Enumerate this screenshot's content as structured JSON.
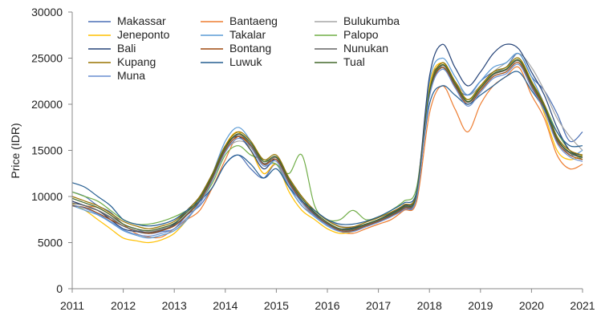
{
  "chart_data": {
    "type": "line",
    "title": "",
    "xlabel": "",
    "ylabel": "Price  (IDR)",
    "xlim": [
      2011,
      2021
    ],
    "ylim": [
      0,
      30000
    ],
    "x_ticks": [
      "2011",
      "2012",
      "2013",
      "2014",
      "2015",
      "2016",
      "2017",
      "2018",
      "2019",
      "2020",
      "2021"
    ],
    "y_ticks": [
      "0",
      "5000",
      "10000",
      "15000",
      "20000",
      "25000",
      "30000"
    ],
    "grid": false,
    "legend_position": "top-left",
    "x": [
      2011.0,
      2011.25,
      2011.5,
      2011.75,
      2012.0,
      2012.25,
      2012.5,
      2012.75,
      2013.0,
      2013.25,
      2013.5,
      2013.75,
      2014.0,
      2014.25,
      2014.5,
      2014.75,
      2015.0,
      2015.25,
      2015.5,
      2015.75,
      2016.0,
      2016.25,
      2016.5,
      2016.75,
      2017.0,
      2017.25,
      2017.5,
      2017.75,
      2018.0,
      2018.25,
      2018.5,
      2018.75,
      2019.0,
      2019.25,
      2019.5,
      2019.75,
      2020.0,
      2020.25,
      2020.5,
      2020.75,
      2021.0
    ],
    "series": [
      {
        "name": "Makassar",
        "color": "#4a6fb5",
        "values": [
          10500,
          10000,
          9000,
          8300,
          7000,
          6500,
          6000,
          6200,
          6500,
          8000,
          9000,
          11000,
          13500,
          14500,
          13000,
          12000,
          13500,
          11000,
          9500,
          8200,
          7000,
          6500,
          6500,
          6800,
          7500,
          8000,
          8500,
          10000,
          22000,
          24000,
          22000,
          21000,
          22500,
          23500,
          24000,
          25500,
          23000,
          21500,
          19000,
          16000,
          17000
        ]
      },
      {
        "name": "Bantaeng",
        "color": "#ed7d31",
        "values": [
          9500,
          9000,
          8800,
          8000,
          7000,
          6000,
          5600,
          5600,
          6500,
          7500,
          8500,
          11000,
          14000,
          16500,
          15000,
          12500,
          13500,
          11000,
          9000,
          8000,
          7000,
          6200,
          6000,
          6500,
          7000,
          7500,
          8500,
          9500,
          19000,
          22000,
          19500,
          17000,
          20000,
          22000,
          23000,
          24000,
          21000,
          18500,
          14500,
          13000,
          13500
        ]
      },
      {
        "name": "Bulukumba",
        "color": "#a5a5a5",
        "values": [
          9000,
          8800,
          8500,
          7800,
          7000,
          6500,
          6200,
          6500,
          7000,
          8000,
          10000,
          12500,
          15000,
          16000,
          15500,
          14000,
          14000,
          12000,
          10000,
          8500,
          7500,
          6800,
          6700,
          7000,
          7500,
          8000,
          9000,
          10500,
          21000,
          24500,
          22500,
          21000,
          22000,
          23500,
          24500,
          25500,
          24000,
          21500,
          18500,
          16500,
          15000
        ]
      },
      {
        "name": "Jeneponto",
        "color": "#ffc000",
        "values": [
          9200,
          8500,
          7500,
          6500,
          5500,
          5200,
          5000,
          5300,
          6000,
          7500,
          9500,
          12000,
          15500,
          17000,
          15000,
          12500,
          13500,
          10500,
          8500,
          7500,
          6500,
          6000,
          6200,
          6800,
          7300,
          8000,
          8800,
          10000,
          22000,
          24500,
          22500,
          20500,
          22000,
          23500,
          24000,
          25000,
          22500,
          19000,
          15000,
          14000,
          14500
        ]
      },
      {
        "name": "Takalar",
        "color": "#5b9bd5",
        "values": [
          9000,
          8500,
          8000,
          7200,
          6300,
          5800,
          5500,
          5800,
          6300,
          7500,
          9500,
          12500,
          16000,
          17500,
          16000,
          13500,
          13500,
          11000,
          9000,
          7800,
          6800,
          6200,
          6300,
          6800,
          7300,
          8000,
          8800,
          10000,
          22500,
          25000,
          23000,
          21000,
          22500,
          24000,
          24500,
          25500,
          23000,
          20000,
          16500,
          14500,
          15000
        ]
      },
      {
        "name": "Palopo",
        "color": "#70ad47",
        "values": [
          10500,
          10000,
          9500,
          8500,
          7500,
          7000,
          7000,
          7300,
          7800,
          8500,
          9500,
          11500,
          14500,
          15500,
          14500,
          14000,
          13500,
          12500,
          14500,
          9000,
          7500,
          7500,
          8500,
          7500,
          7800,
          8500,
          9500,
          11000,
          21500,
          24000,
          22000,
          20500,
          22000,
          23500,
          24000,
          25000,
          22500,
          20000,
          17000,
          15000,
          14000
        ]
      },
      {
        "name": "Bali",
        "color": "#264478",
        "values": [
          9500,
          9000,
          8500,
          7500,
          6500,
          6200,
          6000,
          6300,
          7000,
          8500,
          10000,
          12500,
          15500,
          16500,
          15000,
          13000,
          14000,
          11500,
          9500,
          8200,
          7000,
          6500,
          6600,
          7000,
          7500,
          8200,
          9000,
          10500,
          23000,
          26500,
          24000,
          22000,
          23500,
          25500,
          26500,
          26000,
          23500,
          21000,
          17500,
          15000,
          14500
        ]
      },
      {
        "name": "Bontang",
        "color": "#9e480e",
        "values": [
          9000,
          8800,
          8200,
          7500,
          6800,
          6300,
          6000,
          6300,
          6800,
          8000,
          9500,
          12000,
          15000,
          16500,
          15500,
          13500,
          14000,
          11500,
          9500,
          8000,
          7000,
          6300,
          6300,
          6800,
          7300,
          7900,
          8700,
          10000,
          21000,
          24000,
          22000,
          20000,
          21500,
          23000,
          23500,
          24500,
          22000,
          19500,
          16000,
          14500,
          14000
        ]
      },
      {
        "name": "Nunukan",
        "color": "#636363",
        "values": [
          9300,
          9000,
          8500,
          7700,
          6800,
          6300,
          6100,
          6400,
          6900,
          8100,
          9600,
          12200,
          15200,
          16700,
          15600,
          13600,
          14200,
          11700,
          9600,
          8100,
          7100,
          6400,
          6400,
          6900,
          7400,
          8000,
          8800,
          10100,
          21200,
          24200,
          22200,
          20200,
          21700,
          23200,
          23700,
          24700,
          22200,
          19700,
          16200,
          14700,
          14200
        ]
      },
      {
        "name": "Kupang",
        "color": "#997300",
        "values": [
          10000,
          9500,
          9000,
          8200,
          7300,
          6800,
          6500,
          6800,
          7300,
          8500,
          10000,
          12500,
          15500,
          17000,
          16000,
          14000,
          14500,
          12000,
          10000,
          8500,
          7400,
          6700,
          6700,
          7200,
          7700,
          8300,
          9100,
          10400,
          21500,
          24500,
          22500,
          20500,
          22000,
          23500,
          24000,
          25000,
          22500,
          20000,
          16500,
          15000,
          14500
        ]
      },
      {
        "name": "Luwuk",
        "color": "#255e91",
        "values": [
          11500,
          11000,
          10000,
          9000,
          7500,
          7000,
          6800,
          7000,
          7500,
          8500,
          9500,
          11000,
          13500,
          14500,
          13500,
          12000,
          13000,
          11000,
          9500,
          8500,
          7500,
          7000,
          7000,
          7300,
          7800,
          8500,
          9300,
          10500,
          20000,
          22000,
          21000,
          20000,
          21000,
          22000,
          23000,
          23500,
          21500,
          19500,
          17000,
          15500,
          15500
        ]
      },
      {
        "name": "Tual",
        "color": "#43682b",
        "values": [
          9800,
          9300,
          8800,
          8000,
          7000,
          6500,
          6300,
          6600,
          7100,
          8300,
          9800,
          12300,
          15300,
          16800,
          15800,
          13800,
          14300,
          11800,
          9800,
          8300,
          7200,
          6500,
          6500,
          7000,
          7500,
          8100,
          8900,
          10200,
          21300,
          24300,
          22300,
          20300,
          21800,
          23300,
          23800,
          24800,
          22300,
          19800,
          16300,
          14800,
          14300
        ]
      },
      {
        "name": "Muna",
        "color": "#698ed0",
        "values": [
          9100,
          8700,
          8100,
          7300,
          6400,
          5900,
          5700,
          6000,
          6500,
          7700,
          9200,
          11800,
          14800,
          16300,
          15300,
          13300,
          13800,
          11300,
          9300,
          7900,
          6900,
          6200,
          6200,
          6700,
          7200,
          7800,
          8600,
          9900,
          20800,
          23800,
          21800,
          19800,
          21300,
          22800,
          23300,
          24300,
          21800,
          19300,
          15800,
          14300,
          13800
        ]
      }
    ]
  }
}
